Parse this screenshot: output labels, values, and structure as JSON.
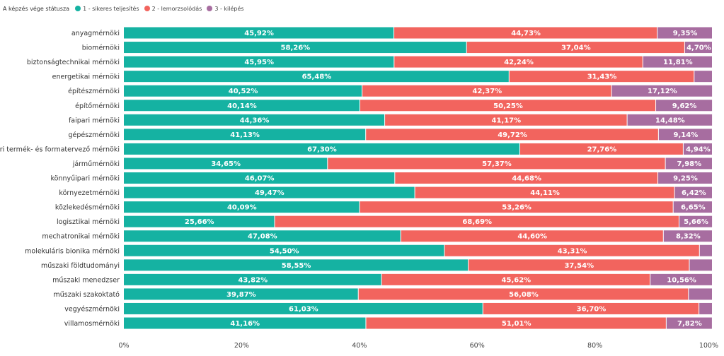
{
  "chart_data": {
    "type": "bar",
    "orientation": "horizontal",
    "stacked": true,
    "legend": {
      "title": "A képzés vége státusza",
      "position": "top-left",
      "entries": [
        {
          "label": "1 - sikeres teljesítés",
          "color": "#15b2a2"
        },
        {
          "label": "2 - lemorzsolódás",
          "color": "#f2645e"
        },
        {
          "label": "3 - kilépés",
          "color": "#a76da0"
        }
      ]
    },
    "categories": [
      "anyagmérnöki",
      "biomérnöki",
      "biztonságtechnikai mérnöki",
      "energetikai mérnöki",
      "építészmérnöki",
      "építőmérnöki",
      "faipari mérnöki",
      "gépészmérnöki",
      "ipari termék- és formatervező mérnöki",
      "járműmérnöki",
      "könnyűipari mérnöki",
      "környezetmérnöki",
      "közlekedésmérnöki",
      "logisztikai mérnöki",
      "mechatronikai mérnöki",
      "molekuláris bionika mérnöki",
      "műszaki földtudományi",
      "műszaki menedzser",
      "műszaki szakoktató",
      "vegyészmérnöki",
      "villamosmérnöki"
    ],
    "series": [
      {
        "name": "1 - sikeres teljesítés",
        "color": "#15b2a2",
        "values": [
          45.92,
          58.26,
          45.95,
          65.48,
          40.52,
          40.14,
          44.36,
          41.13,
          67.3,
          34.65,
          46.07,
          49.47,
          40.09,
          25.66,
          47.08,
          54.5,
          58.55,
          43.82,
          39.87,
          61.03,
          41.16
        ],
        "labels": [
          "45,92%",
          "58,26%",
          "45,95%",
          "65,48%",
          "40,52%",
          "40,14%",
          "44,36%",
          "41,13%",
          "67,30%",
          "34,65%",
          "46,07%",
          "49,47%",
          "40,09%",
          "25,66%",
          "47,08%",
          "54,50%",
          "58,55%",
          "43,82%",
          "39,87%",
          "61,03%",
          "41,16%"
        ]
      },
      {
        "name": "2 - lemorzsolódás",
        "color": "#f2645e",
        "values": [
          44.73,
          37.04,
          42.24,
          31.43,
          42.37,
          50.25,
          41.17,
          49.72,
          27.76,
          57.37,
          44.68,
          44.11,
          53.26,
          68.69,
          44.6,
          43.31,
          37.54,
          45.62,
          56.08,
          36.7,
          51.01
        ],
        "labels": [
          "44,73%",
          "37,04%",
          "42,24%",
          "31,43%",
          "42,37%",
          "50,25%",
          "41,17%",
          "49,72%",
          "27,76%",
          "57,37%",
          "44,68%",
          "44,11%",
          "53,26%",
          "68,69%",
          "44,60%",
          "43,31%",
          "37,54%",
          "45,62%",
          "56,08%",
          "36,70%",
          "51,01%"
        ]
      },
      {
        "name": "3 - kilépés",
        "color": "#a76da0",
        "values": [
          9.35,
          4.7,
          11.81,
          3.09,
          17.12,
          9.62,
          14.48,
          9.14,
          4.94,
          7.98,
          9.25,
          6.42,
          6.65,
          5.66,
          8.32,
          2.19,
          3.91,
          10.56,
          4.05,
          2.27,
          7.82
        ],
        "labels": [
          "9,35%",
          "4,70%",
          "11,81%",
          "",
          "17,12%",
          "9,62%",
          "14,48%",
          "9,14%",
          "4,94%",
          "7,98%",
          "9,25%",
          "6,42%",
          "6,65%",
          "5,66%",
          "8,32%",
          "",
          "",
          "10,56%",
          "",
          "",
          "7,82%"
        ]
      }
    ],
    "xlim": [
      0,
      100
    ],
    "x_ticks": [
      "0%",
      "20%",
      "40%",
      "60%",
      "80%",
      "100%"
    ],
    "xlabel": "",
    "ylabel": "",
    "grid": false
  }
}
